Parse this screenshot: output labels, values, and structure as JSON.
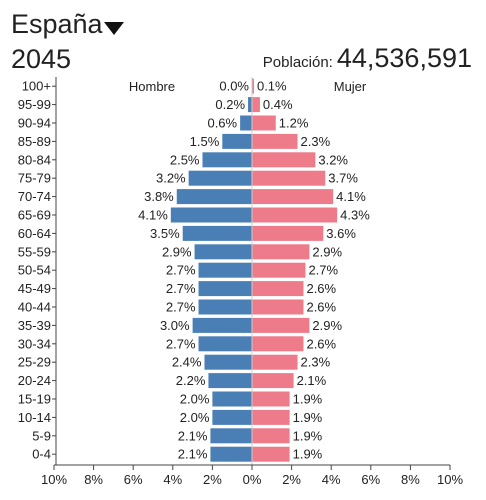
{
  "header": {
    "country": "España",
    "year": "2045",
    "population_label": "Población:",
    "population_value": "44,536,591"
  },
  "colors": {
    "male": "#4a7fb5",
    "female": "#ee7b8a",
    "axis": "#444444"
  },
  "chart_data": {
    "type": "bar",
    "orientation": "horizontal-population-pyramid",
    "categories": [
      "100+",
      "95-99",
      "90-94",
      "85-89",
      "80-84",
      "75-79",
      "70-74",
      "65-69",
      "60-64",
      "55-59",
      "50-54",
      "45-49",
      "40-44",
      "35-39",
      "30-34",
      "25-29",
      "20-24",
      "15-19",
      "10-14",
      "5-9",
      "0-4"
    ],
    "series": [
      {
        "name": "Hombre",
        "values": [
          0.0,
          0.2,
          0.6,
          1.5,
          2.5,
          3.2,
          3.8,
          4.1,
          3.5,
          2.9,
          2.7,
          2.7,
          2.7,
          3.0,
          2.7,
          2.4,
          2.2,
          2.0,
          2.0,
          2.1,
          2.1
        ]
      },
      {
        "name": "Mujer",
        "values": [
          0.1,
          0.4,
          1.2,
          2.3,
          3.2,
          3.7,
          4.1,
          4.3,
          3.6,
          2.9,
          2.7,
          2.6,
          2.6,
          2.9,
          2.6,
          2.3,
          2.1,
          1.9,
          1.9,
          1.9,
          1.9
        ]
      }
    ],
    "value_labels": {
      "Hombre": [
        "0.0%",
        "0.2%",
        "0.6%",
        "1.5%",
        "2.5%",
        "3.2%",
        "3.8%",
        "4.1%",
        "3.5%",
        "2.9%",
        "2.7%",
        "2.7%",
        "2.7%",
        "3.0%",
        "2.7%",
        "2.4%",
        "2.2%",
        "2.0%",
        "2.0%",
        "2.1%",
        "2.1%"
      ],
      "Mujer": [
        "0.1%",
        "0.4%",
        "1.2%",
        "2.3%",
        "3.2%",
        "3.7%",
        "4.1%",
        "4.3%",
        "3.6%",
        "2.9%",
        "2.7%",
        "2.6%",
        "2.6%",
        "2.9%",
        "2.6%",
        "2.3%",
        "2.1%",
        "1.9%",
        "1.9%",
        "1.9%",
        "1.9%"
      ]
    },
    "x_ticks": [
      "10%",
      "8%",
      "6%",
      "4%",
      "2%",
      "0%",
      "2%",
      "4%",
      "6%",
      "8%",
      "10%"
    ],
    "xlim": [
      -10,
      10
    ],
    "grid": false,
    "legend": "top-center"
  }
}
